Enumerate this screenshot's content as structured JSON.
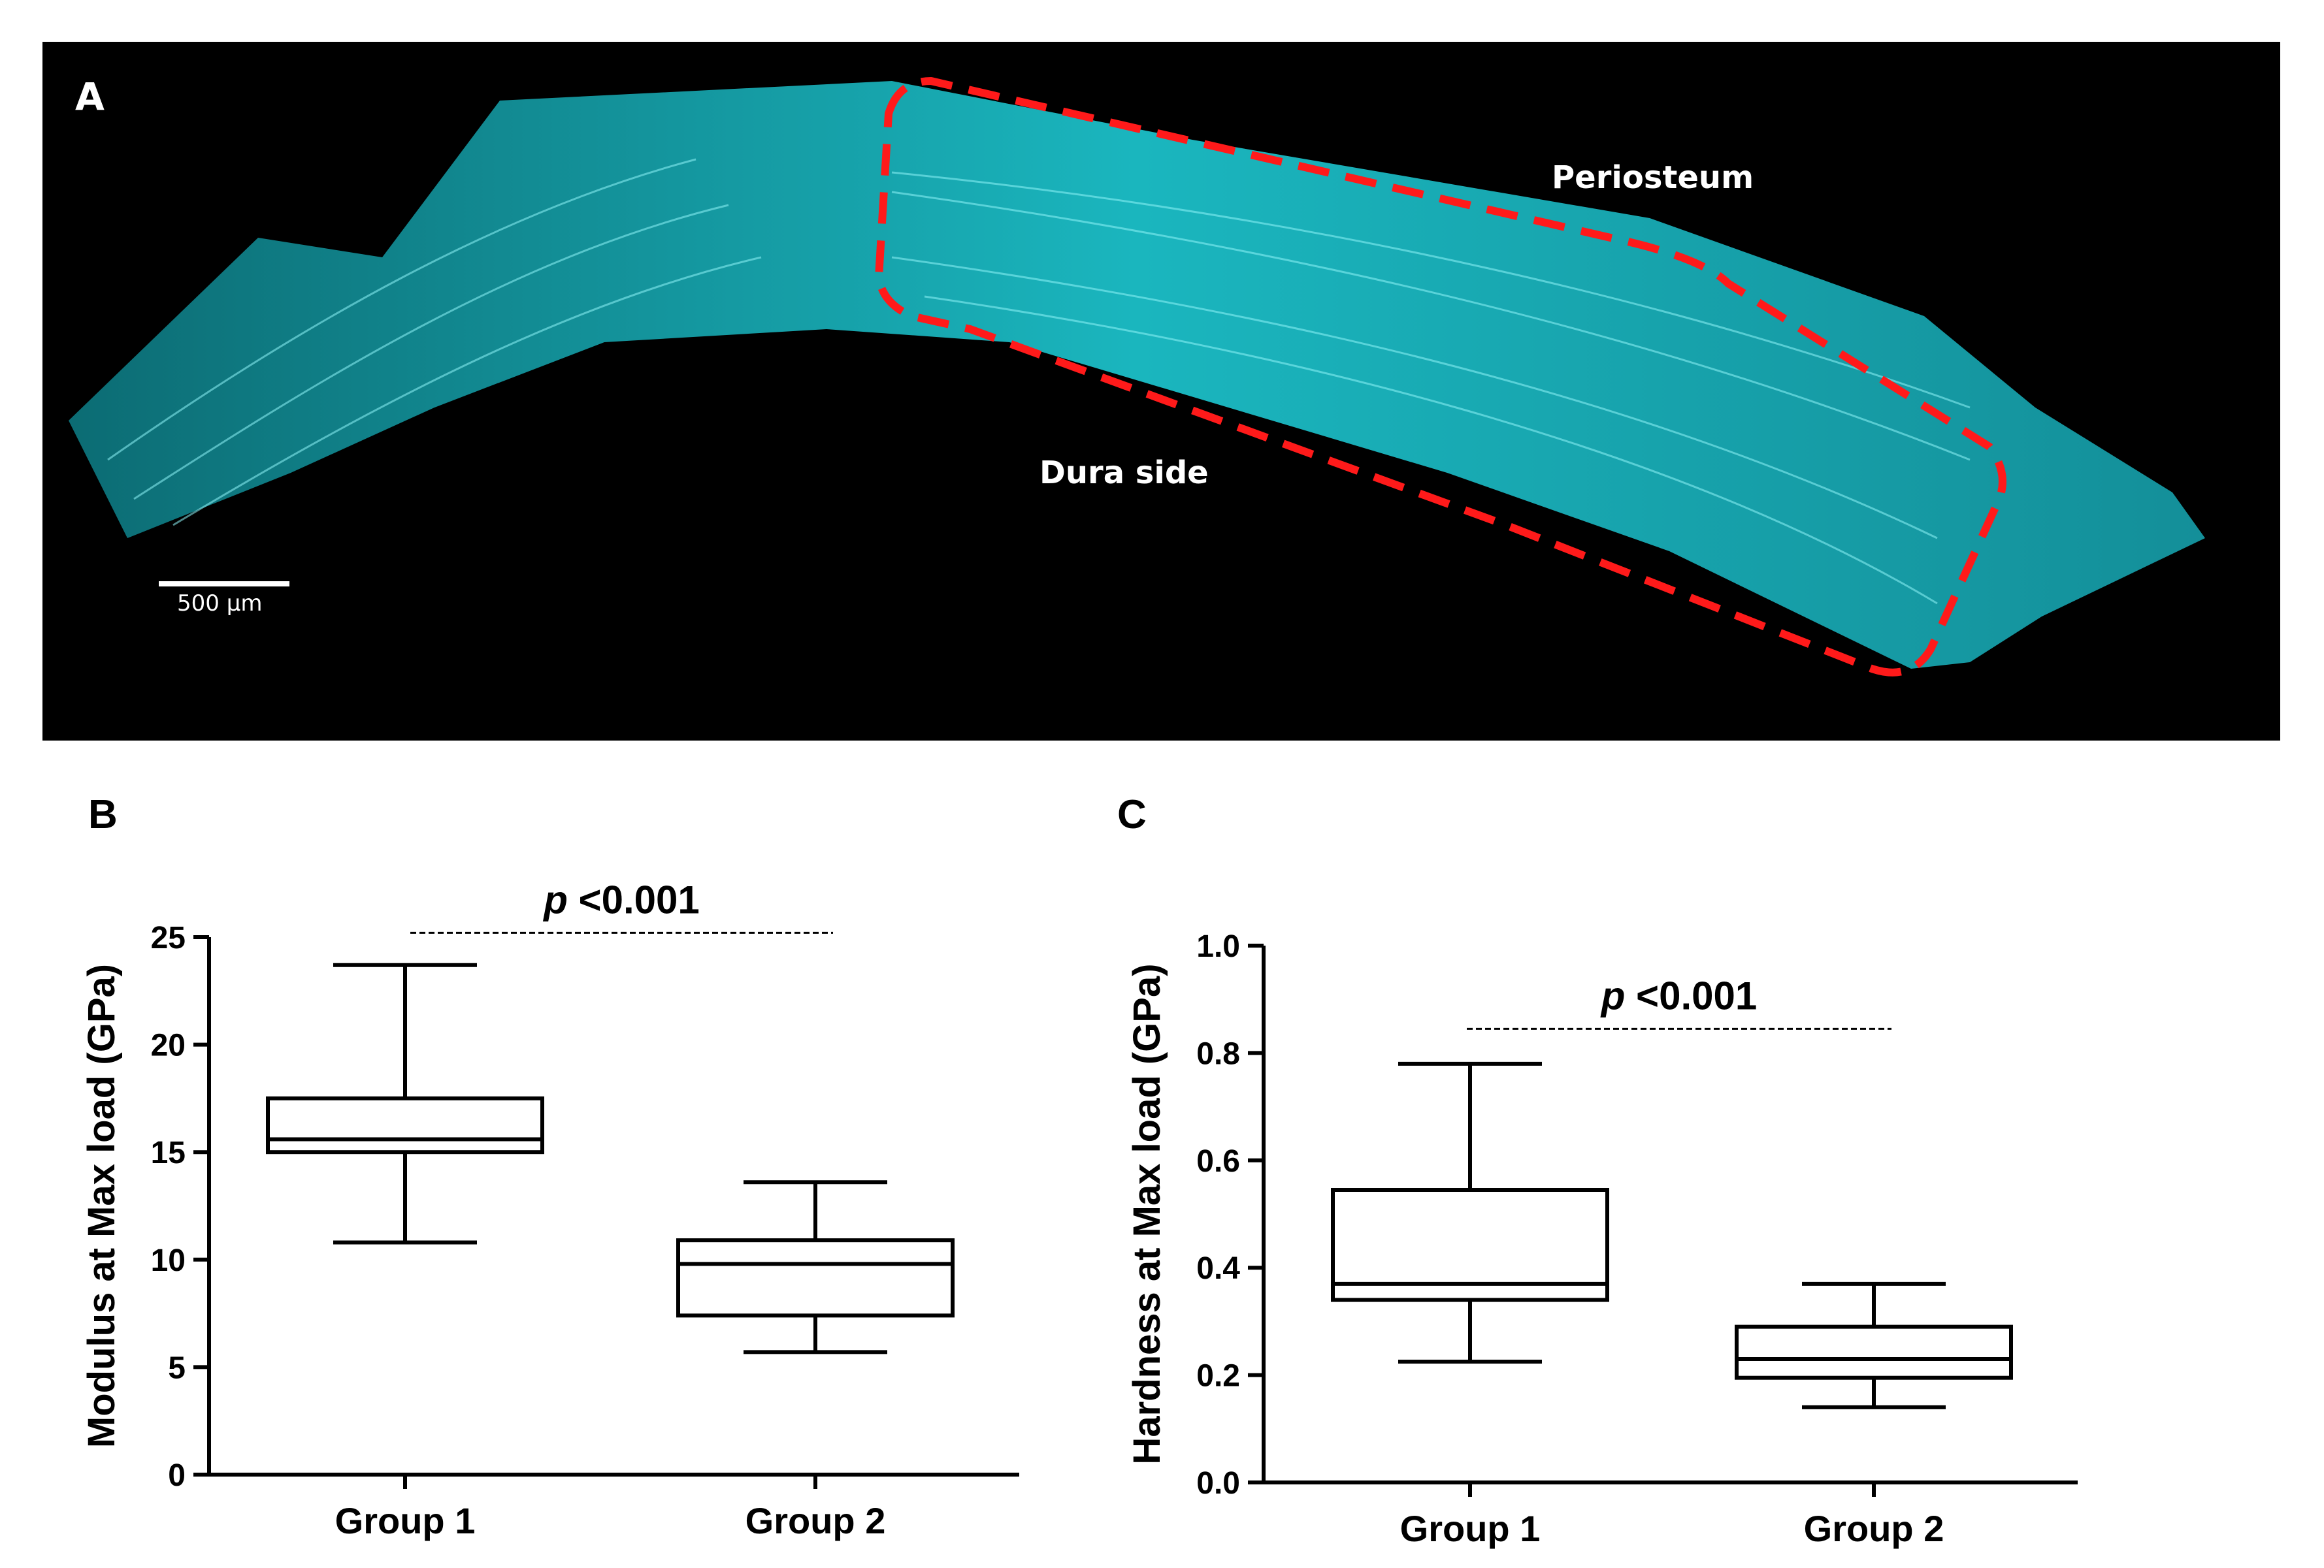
{
  "panel_a": {
    "letter": "A",
    "labels": {
      "periosteum": "Periosteum",
      "dura": "Dura side"
    },
    "scale_bar_label": "500 µm",
    "colors": {
      "background": "#000000",
      "tissue": "#1fd6e0",
      "roi_outline": "#ff1a1a"
    }
  },
  "chart_data": [
    {
      "panel": "B",
      "type": "box",
      "categories": [
        "Group 1",
        "Group 2"
      ],
      "ylabel": "Modulus at Max load (GPa)",
      "ylim": [
        0,
        25
      ],
      "yticks": [
        0,
        5,
        10,
        15,
        20,
        25
      ],
      "boxes": [
        {
          "min": 10.8,
          "q1": 15.0,
          "median": 15.6,
          "q3": 17.5,
          "max": 23.7
        },
        {
          "min": 5.7,
          "q1": 7.4,
          "median": 9.8,
          "q3": 10.9,
          "max": 13.6
        }
      ],
      "significance": {
        "label_p": "p",
        "label_rest": " <0.001",
        "value": 25.2
      }
    },
    {
      "panel": "C",
      "type": "box",
      "categories": [
        "Group 1",
        "Group 2"
      ],
      "ylabel": "Hardness at Max load (GPa)",
      "ylim": [
        0,
        1.0
      ],
      "yticks": [
        0.0,
        0.2,
        0.4,
        0.6,
        0.8,
        1.0
      ],
      "tick_labels": [
        "0.0",
        "0.2",
        "0.4",
        "0.6",
        "0.8",
        "1.0"
      ],
      "boxes": [
        {
          "min": 0.225,
          "q1": 0.34,
          "median": 0.37,
          "q3": 0.545,
          "max": 0.78
        },
        {
          "min": 0.14,
          "q1": 0.195,
          "median": 0.23,
          "q3": 0.29,
          "max": 0.37
        }
      ],
      "significance": {
        "label_p": "p",
        "label_rest": " <0.001",
        "value": 0.845
      }
    }
  ]
}
